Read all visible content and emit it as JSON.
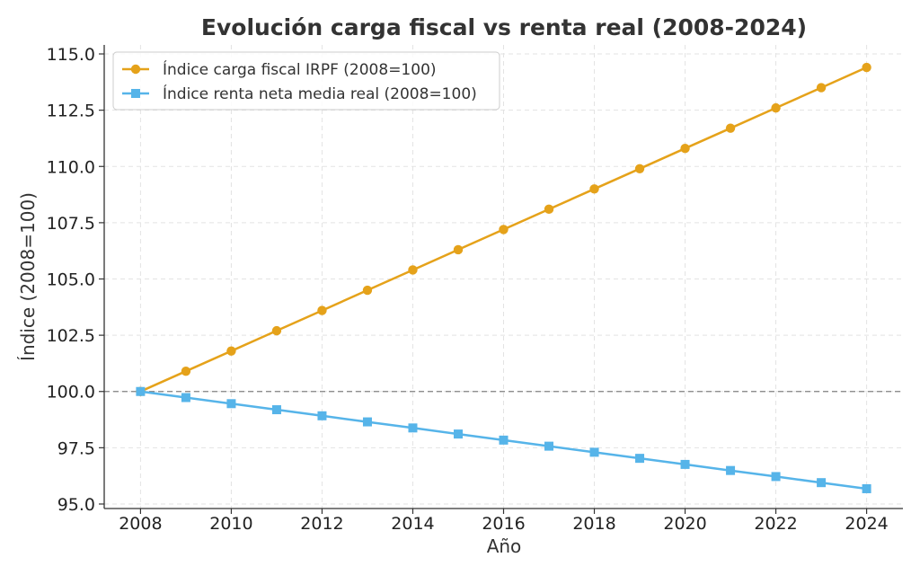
{
  "chart_data": {
    "type": "line",
    "title": "Evolución carga fiscal vs renta real (2008-2024)",
    "xlabel": "Año",
    "ylabel": "Índice (2008=100)",
    "x": [
      2008,
      2009,
      2010,
      2011,
      2012,
      2013,
      2014,
      2015,
      2016,
      2017,
      2018,
      2019,
      2020,
      2021,
      2022,
      2023,
      2024
    ],
    "xlim": [
      2007.2,
      2024.8
    ],
    "ylim": [
      94.8,
      115.4
    ],
    "xticks": [
      2008,
      2010,
      2012,
      2014,
      2016,
      2018,
      2020,
      2022,
      2024
    ],
    "yticks": [
      95.0,
      97.5,
      100.0,
      102.5,
      105.0,
      107.5,
      110.0,
      112.5,
      115.0
    ],
    "ytick_labels": [
      "95.0",
      "97.5",
      "100.0",
      "102.5",
      "105.0",
      "107.5",
      "110.0",
      "112.5",
      "115.0"
    ],
    "grid": true,
    "legend_position": "upper-left",
    "reference_line": {
      "y": 100,
      "style": "dashed",
      "color": "#808080"
    },
    "series": [
      {
        "name": "Índice carga fiscal IRPF (2008=100)",
        "color": "#E5A21A",
        "marker": "circle",
        "values": [
          100.0,
          100.9,
          101.8,
          102.7,
          103.6,
          104.5,
          105.4,
          106.3,
          107.2,
          108.1,
          109.0,
          109.9,
          110.8,
          111.7,
          112.6,
          113.5,
          114.4
        ]
      },
      {
        "name": "Índice renta neta media real (2008=100)",
        "color": "#56B4E9",
        "marker": "square",
        "values": [
          100.0,
          99.73,
          99.46,
          99.19,
          98.92,
          98.65,
          98.38,
          98.11,
          97.84,
          97.57,
          97.3,
          97.03,
          96.76,
          96.49,
          96.22,
          95.95,
          95.68
        ]
      }
    ]
  }
}
